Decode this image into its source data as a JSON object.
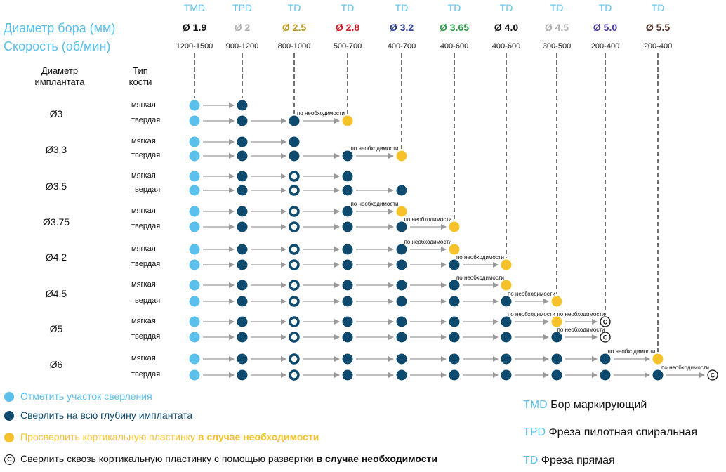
{
  "header": {
    "row_diameter_label": "Диаметр бора (мм)",
    "row_speed_label": "Скорость (об/мин)",
    "implant_diameter_label": "Диаметр\nимплантата",
    "bone_type_label": "Тип\nкости"
  },
  "columns": [
    {
      "type": "TMD",
      "diameter": "Ø 1.9",
      "speed": "1200-1500",
      "color": "#111111"
    },
    {
      "type": "TPD",
      "diameter": "Ø 2",
      "speed": "900-1200",
      "color": "#b0b0b0"
    },
    {
      "type": "TD",
      "diameter": "Ø 2.5",
      "speed": "800-1000",
      "color": "#b5961b"
    },
    {
      "type": "TD",
      "diameter": "Ø 2.8",
      "speed": "500-700",
      "color": "#d0202a"
    },
    {
      "type": "TD",
      "diameter": "Ø 3.2",
      "speed": "400-700",
      "color": "#2a3d94"
    },
    {
      "type": "TD",
      "diameter": "Ø 3.65",
      "speed": "400-600",
      "color": "#2a9a48"
    },
    {
      "type": "TD",
      "diameter": "Ø 4.0",
      "speed": "400-600",
      "color": "#111111"
    },
    {
      "type": "TD",
      "diameter": "Ø 4.5",
      "speed": "300-500",
      "color": "#b0b0b0"
    },
    {
      "type": "TD",
      "diameter": "Ø 5.0",
      "speed": "200-400",
      "color": "#4a3a99"
    },
    {
      "type": "TD",
      "diameter": "Ø 5.5",
      "speed": "200-400",
      "color": "#4a2a20"
    }
  ],
  "bone_types": {
    "soft": "мягкая",
    "hard": "твердая"
  },
  "note_text": "по необходимости",
  "implants": [
    {
      "label": "Ø3",
      "soft": [
        "L",
        "D"
      ],
      "hard": [
        "L",
        "D",
        "D",
        "Y"
      ]
    },
    {
      "label": "Ø3.3",
      "soft": [
        "L",
        "D",
        "D"
      ],
      "hard": [
        "L",
        "D",
        "D",
        "D",
        "Y"
      ]
    },
    {
      "label": "Ø3.5",
      "soft": [
        "L",
        "D",
        "R",
        "D"
      ],
      "hard": [
        "L",
        "D",
        "R",
        "D",
        "D"
      ]
    },
    {
      "label": "Ø3.75",
      "soft": [
        "L",
        "D",
        "R",
        "D",
        "Y"
      ],
      "hard": [
        "L",
        "D",
        "R",
        "D",
        "D",
        "Y"
      ]
    },
    {
      "label": "Ø4.2",
      "soft": [
        "L",
        "D",
        "R",
        "D",
        "D",
        "Y"
      ],
      "hard": [
        "L",
        "D",
        "R",
        "D",
        "D",
        "D",
        "Y"
      ]
    },
    {
      "label": "Ø4.5",
      "soft": [
        "L",
        "D",
        "R",
        "D",
        "D",
        "D",
        "Y"
      ],
      "hard": [
        "L",
        "D",
        "R",
        "D",
        "D",
        "D",
        "D",
        "Y"
      ]
    },
    {
      "label": "Ø5",
      "soft": [
        "L",
        "D",
        "R",
        "D",
        "D",
        "D",
        "D",
        "Y",
        "C"
      ],
      "hard": [
        "L",
        "D",
        "R",
        "D",
        "D",
        "D",
        "D",
        "D",
        "C"
      ]
    },
    {
      "label": "Ø6",
      "soft": [
        "L",
        "D",
        "R",
        "D",
        "D",
        "D",
        "D",
        "D",
        "D",
        "Y"
      ],
      "hard": [
        "L",
        "D",
        "R",
        "D",
        "D",
        "D",
        "D",
        "D",
        "D",
        "D",
        "C"
      ]
    }
  ],
  "marker_colors": {
    "light": "#5bc0eb",
    "dark": "#0d4a6e",
    "yellow": "#f6c22b",
    "arrow": "#9a9a9a"
  },
  "legend": [
    {
      "icon": "light-dot",
      "text": "Отметить участок сверления",
      "bold": "",
      "color": "#5bc0eb"
    },
    {
      "icon": "dark-dot",
      "text": "Сверлить на всю глубину имплантата",
      "bold": "",
      "color": "#0d4a6e"
    },
    {
      "icon": "yellow-dot",
      "text": "Просверлить кортикальную пластинку ",
      "bold": "в случае необходимости",
      "color": "#f6c22b"
    },
    {
      "icon": "c-circle",
      "text": "Сверлить сквозь кортикальную пластинку с помощью развертки ",
      "bold": "в случае необходимости",
      "color": "#111111"
    }
  ],
  "abbreviations": [
    {
      "code": "TMD",
      "desc": "Бор маркирующий"
    },
    {
      "code": "TPD",
      "desc": "Фреза пилотная спиральная"
    },
    {
      "code": "TD",
      "desc": "Фреза прямая"
    }
  ]
}
